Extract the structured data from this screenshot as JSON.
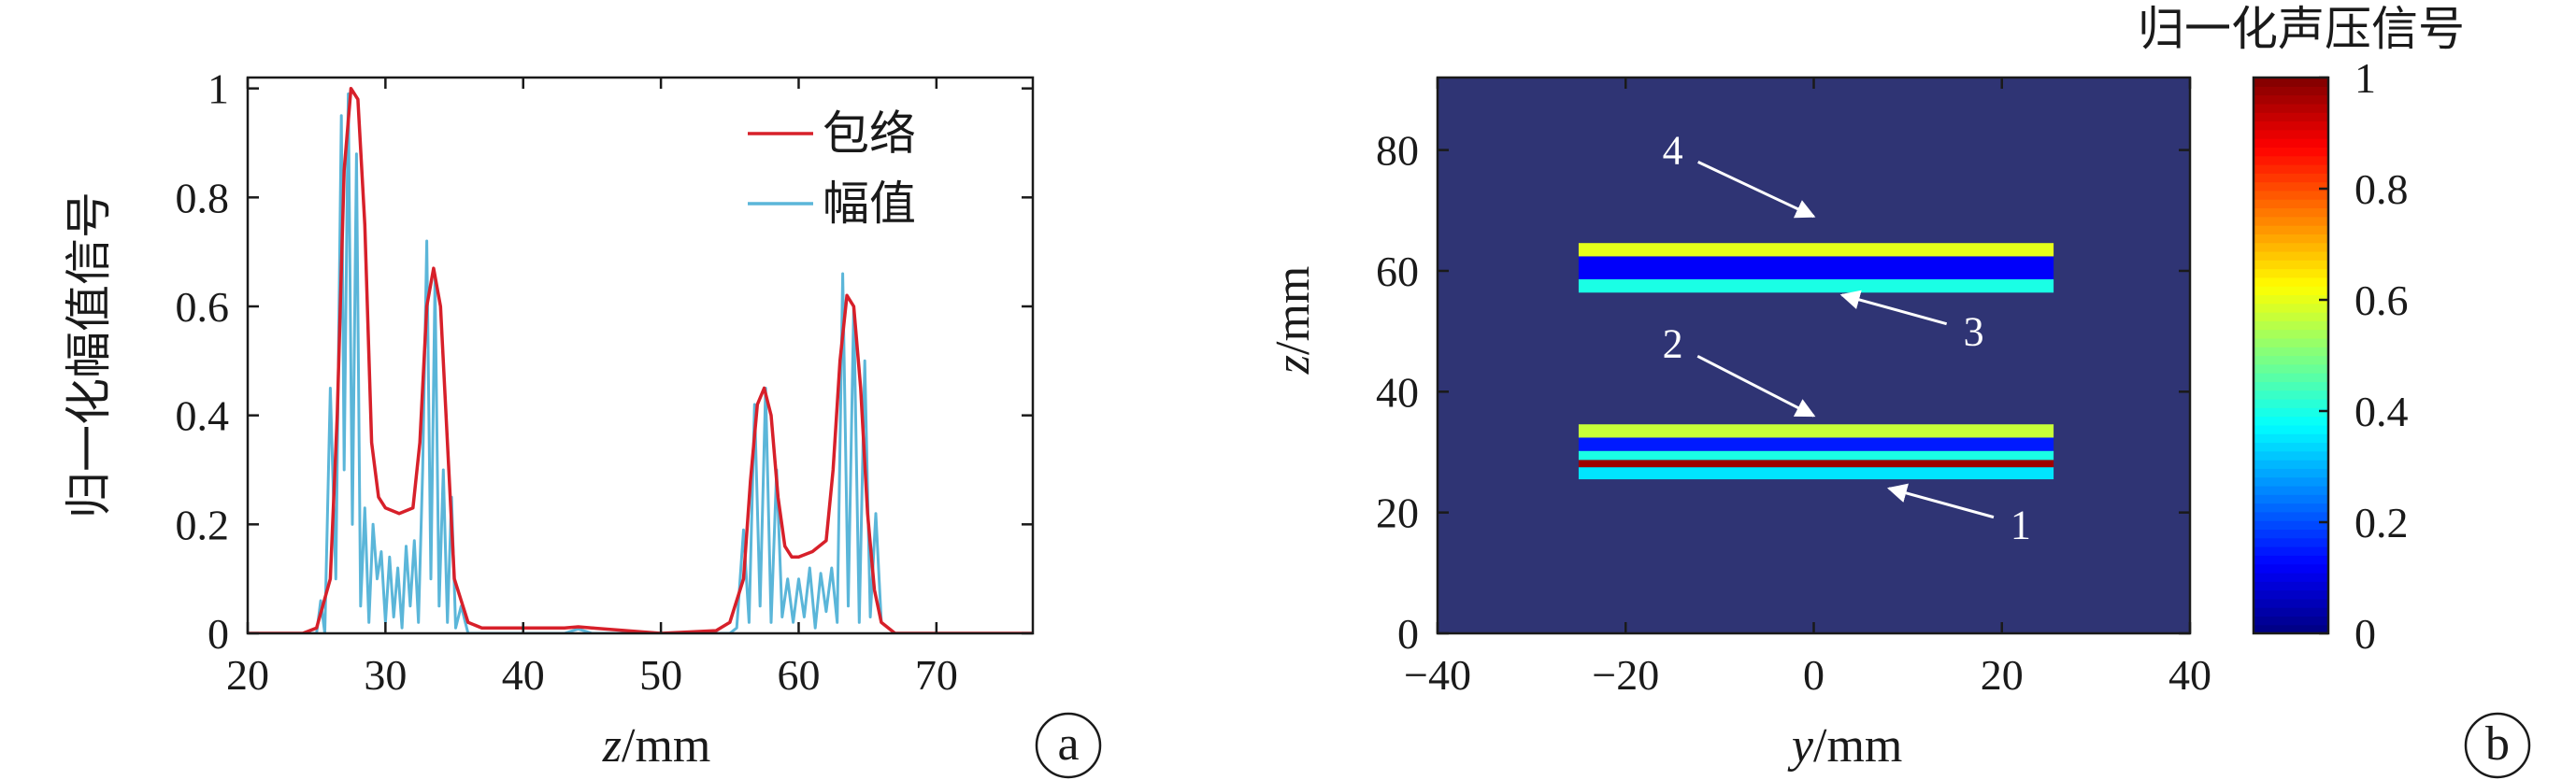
{
  "chart_data": [
    {
      "type": "line",
      "panel_label": "a",
      "xlabel_var": "z",
      "xlabel_unit": "/mm",
      "ylabel": "归一化幅值信号",
      "xlim": [
        20,
        77
      ],
      "ylim": [
        0,
        1.02
      ],
      "xticks": [
        "20",
        "30",
        "40",
        "50",
        "60",
        "70"
      ],
      "yticks": [
        "0",
        "0.2",
        "0.4",
        "0.6",
        "0.8",
        "1"
      ],
      "legend": {
        "position": "top-right"
      },
      "colors": {
        "envelope": "#d7202a",
        "amplitude": "#5bb6d9"
      },
      "series": [
        {
          "name": "包络",
          "x": [
            20,
            24,
            25,
            26,
            26.5,
            27,
            27.5,
            28,
            28.5,
            29,
            29.5,
            30,
            31,
            32,
            32.5,
            33,
            33.5,
            34,
            34.5,
            35,
            36,
            37,
            40,
            43,
            44,
            45,
            50,
            54,
            55,
            56,
            56.5,
            57,
            57.5,
            58,
            58.5,
            59,
            59.5,
            60,
            61,
            62,
            62.5,
            63,
            63.5,
            64,
            64.5,
            65,
            65.5,
            66,
            67,
            77
          ],
          "y": [
            0,
            0,
            0.01,
            0.1,
            0.4,
            0.85,
            1.0,
            0.98,
            0.75,
            0.35,
            0.25,
            0.23,
            0.22,
            0.23,
            0.35,
            0.6,
            0.67,
            0.6,
            0.35,
            0.1,
            0.02,
            0.01,
            0.01,
            0.01,
            0.012,
            0.01,
            0,
            0.005,
            0.02,
            0.1,
            0.28,
            0.42,
            0.45,
            0.4,
            0.25,
            0.16,
            0.14,
            0.14,
            0.15,
            0.17,
            0.3,
            0.5,
            0.62,
            0.6,
            0.45,
            0.22,
            0.08,
            0.02,
            0,
            0
          ]
        },
        {
          "name": "幅值",
          "x": [
            20,
            25,
            25.3,
            25.6,
            26,
            26.4,
            26.8,
            27,
            27.3,
            27.6,
            27.9,
            28.2,
            28.5,
            28.8,
            29.1,
            29.4,
            29.7,
            30,
            30.3,
            30.6,
            30.9,
            31.2,
            31.5,
            31.8,
            32.1,
            32.4,
            32.7,
            33,
            33.3,
            33.6,
            33.9,
            34.2,
            34.5,
            34.8,
            35.1,
            35.5,
            36,
            40,
            43,
            44,
            45,
            50,
            55,
            55.5,
            56,
            56.4,
            56.8,
            57.2,
            57.6,
            58,
            58.4,
            58.8,
            59.2,
            59.6,
            60,
            60.4,
            60.8,
            61.2,
            61.6,
            62,
            62.4,
            62.8,
            63.2,
            63.6,
            64,
            64.4,
            64.8,
            65.2,
            65.6,
            66,
            67,
            77
          ],
          "y": [
            0,
            0,
            0.06,
            0,
            0.45,
            0.1,
            0.95,
            0.3,
            0.99,
            0.2,
            0.88,
            0.05,
            0.23,
            0.02,
            0.2,
            0.1,
            0.15,
            0.02,
            0.14,
            0.03,
            0.12,
            0.01,
            0.16,
            0.05,
            0.17,
            0.02,
            0.3,
            0.72,
            0.1,
            0.65,
            0.05,
            0.3,
            0.02,
            0.25,
            0.01,
            0.05,
            0,
            0,
            0,
            0.008,
            0,
            0,
            0,
            0.01,
            0.19,
            0.02,
            0.42,
            0.05,
            0.45,
            0.02,
            0.3,
            0.03,
            0.1,
            0.02,
            0.1,
            0.03,
            0.12,
            0.01,
            0.11,
            0.04,
            0.12,
            0.02,
            0.66,
            0.05,
            0.6,
            0.02,
            0.5,
            0.03,
            0.22,
            0.02,
            0,
            0
          ]
        }
      ]
    },
    {
      "type": "heatmap",
      "panel_label": "b",
      "xlabel_var": "y",
      "xlabel_unit": "/mm",
      "ylabel_var": "z",
      "ylabel_unit": "/mm",
      "xlim": [
        -40,
        40
      ],
      "ylim": [
        0,
        92
      ],
      "xticks": [
        "−40",
        "−20",
        "0",
        "20",
        "40"
      ],
      "yticks": [
        "0",
        "20",
        "40",
        "60",
        "80"
      ],
      "background_color": "#2f3474",
      "colorbar": {
        "title": "归一化声压信号",
        "range": [
          0,
          1
        ],
        "ticks": [
          "0",
          "0.2",
          "0.4",
          "0.6",
          "0.8",
          "1"
        ],
        "colormap": "jet"
      },
      "bands": [
        {
          "y_range": [
            -25,
            25.5
          ],
          "z_range": [
            25.5,
            27.5
          ],
          "value": 0.35
        },
        {
          "y_range": [
            -25,
            25.5
          ],
          "z_range": [
            27.5,
            28.7
          ],
          "value": 0.97
        },
        {
          "y_range": [
            -25,
            25.5
          ],
          "z_range": [
            28.7,
            30.2
          ],
          "value": 0.4
        },
        {
          "y_range": [
            -25,
            25.5
          ],
          "z_range": [
            30.2,
            32.4
          ],
          "value": 0.15
        },
        {
          "y_range": [
            -25,
            25.5
          ],
          "z_range": [
            32.4,
            34.6
          ],
          "value": 0.57
        },
        {
          "y_range": [
            -25,
            25.5
          ],
          "z_range": [
            56.4,
            58.6
          ],
          "value": 0.4
        },
        {
          "y_range": [
            -25,
            25.5
          ],
          "z_range": [
            58.6,
            62.4
          ],
          "value": 0.12
        },
        {
          "y_range": [
            -25,
            25.5
          ],
          "z_range": [
            62.4,
            64.6
          ],
          "value": 0.6
        }
      ],
      "annotations": [
        {
          "text": "1",
          "text_at": [
            22,
            18
          ],
          "arrow_to": [
            8,
            24
          ]
        },
        {
          "text": "2",
          "text_at": [
            -15,
            48
          ],
          "arrow_to": [
            0,
            36
          ]
        },
        {
          "text": "3",
          "text_at": [
            17,
            50
          ],
          "arrow_to": [
            3,
            56
          ]
        },
        {
          "text": "4",
          "text_at": [
            -15,
            80
          ],
          "arrow_to": [
            0,
            69
          ]
        }
      ]
    }
  ]
}
